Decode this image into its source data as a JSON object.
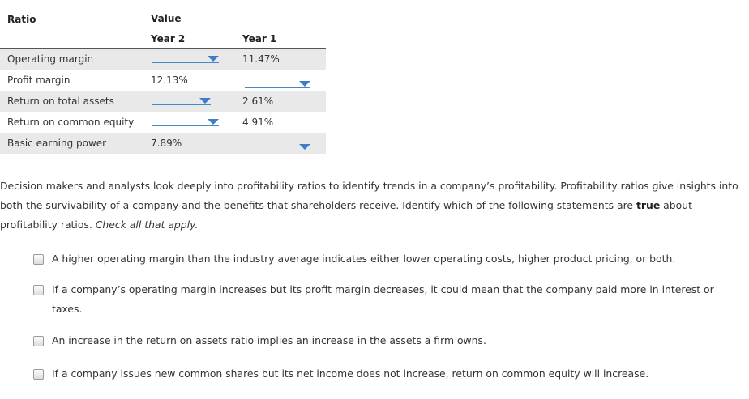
{
  "table": {
    "col_ratio": "Ratio",
    "col_value": "Value",
    "col_year2": "Year 2",
    "col_year1": "Year 1",
    "rows": [
      {
        "label": "Operating margin",
        "year2": "",
        "year1": "11.47%"
      },
      {
        "label": "Profit margin",
        "year2": "12.13%",
        "year1": ""
      },
      {
        "label": "Return on total assets",
        "year2": "",
        "year1": "2.61%"
      },
      {
        "label": "Return on common equity",
        "year2": "",
        "year1": "4.91%"
      },
      {
        "label": "Basic earning power",
        "year2": "7.89%",
        "year1": ""
      }
    ]
  },
  "question": {
    "intro_before": "Decision makers and analysts look deeply into profitability ratios to identify trends in a company’s profitability. Profitability ratios give insights into both the survivability of a company and the benefits that shareholders receive. Identify which of the following statements are ",
    "intro_bold": "true",
    "intro_after": " about profitability ratios. ",
    "intro_italic": "Check all that apply.",
    "options": [
      "A higher operating margin than the industry average indicates either lower operating costs, higher product pricing, or both.",
      "If a company’s operating margin increases but its profit margin decreases, it could mean that the company paid more in interest or taxes.",
      "An increase in the return on assets ratio implies an increase in the assets a firm owns.",
      "If a company issues new common shares but its net income does not increase, return on common equity will increase."
    ]
  },
  "colors": {
    "shade": "#e9e9e9",
    "dropdown_accent": "#3d7dc9"
  }
}
